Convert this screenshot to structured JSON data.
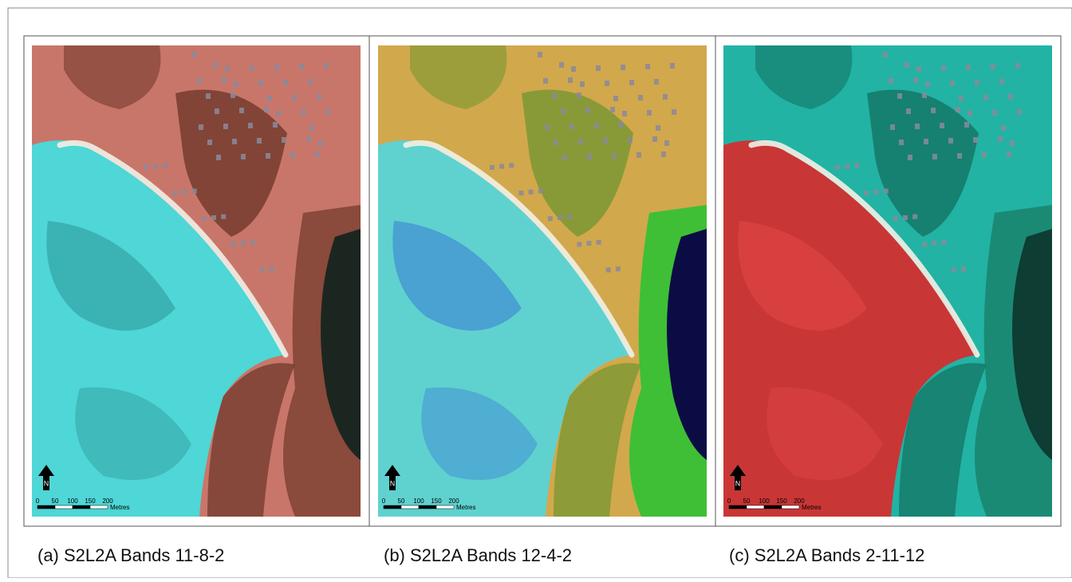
{
  "panels": [
    {
      "caption": "(a) S2L2A Bands 11-8-2",
      "north": "N",
      "scale": [
        "0",
        "50",
        "100",
        "150",
        "200"
      ],
      "unit": "Metres"
    },
    {
      "caption": "(b) S2L2A Bands 12-4-2",
      "north": "N",
      "scale": [
        "0",
        "50",
        "100",
        "150",
        "200"
      ],
      "unit": "Metres"
    },
    {
      "caption": "(c) S2L2A Bands 2-11-12",
      "north": "N",
      "scale": [
        "0",
        "50",
        "100",
        "150",
        "200"
      ],
      "unit": "Metres"
    }
  ]
}
